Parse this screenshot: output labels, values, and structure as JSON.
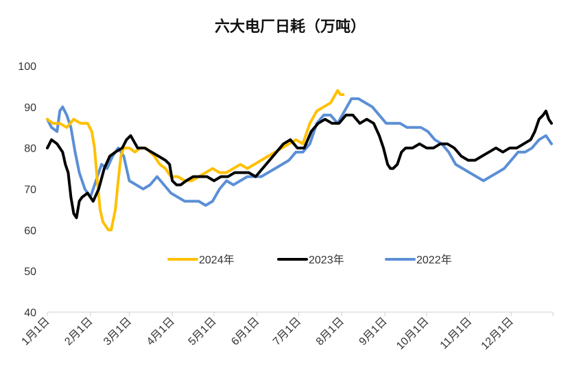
{
  "chart_data": {
    "type": "line",
    "title": "六大电厂日耗（万吨）",
    "xlabel": "",
    "ylabel": "",
    "ylim": [
      40,
      100
    ],
    "yticks": [
      40,
      50,
      60,
      70,
      80,
      90,
      100
    ],
    "x_range": [
      1,
      365
    ],
    "grid": false,
    "legend_position": "center",
    "categories": [
      "1月1日",
      "2月1日",
      "3月1日",
      "4月1日",
      "5月1日",
      "6月1日",
      "7月1日",
      "8月1日",
      "9月1日",
      "10月1日",
      "11月1日",
      "12月1日"
    ],
    "category_days": [
      1,
      32,
      60,
      91,
      121,
      152,
      182,
      213,
      244,
      274,
      305,
      335
    ],
    "series": [
      {
        "name": "2024年",
        "color": "#FFC000",
        "x": [
          1,
          5,
          10,
          15,
          20,
          25,
          30,
          33,
          35,
          37,
          39,
          41,
          43,
          45,
          47,
          50,
          52,
          54,
          56,
          60,
          64,
          68,
          72,
          75,
          78,
          82,
          86,
          90,
          95,
          100,
          105,
          110,
          115,
          120,
          125,
          130,
          135,
          140,
          145,
          150,
          155,
          160,
          165,
          170,
          175,
          180,
          185,
          190,
          195,
          200,
          205,
          210,
          212,
          214
        ],
        "values": [
          87,
          86,
          86,
          85,
          87,
          86,
          86,
          84,
          80,
          72,
          65,
          62,
          61,
          60,
          60,
          65,
          72,
          78,
          80,
          80,
          79,
          80,
          80,
          79,
          78,
          76,
          75,
          73,
          73,
          72,
          72,
          73,
          74,
          75,
          74,
          74,
          75,
          76,
          75,
          76,
          77,
          78,
          79,
          80,
          81,
          82,
          81,
          86,
          89,
          90,
          91,
          94,
          93,
          93
        ]
      },
      {
        "name": "2023年",
        "color": "#000000",
        "x": [
          1,
          4,
          8,
          12,
          14,
          16,
          18,
          20,
          22,
          24,
          26,
          30,
          34,
          38,
          42,
          46,
          50,
          55,
          58,
          61,
          66,
          71,
          76,
          81,
          86,
          89,
          91,
          94,
          97,
          101,
          106,
          111,
          116,
          121,
          126,
          131,
          136,
          141,
          146,
          151,
          156,
          161,
          166,
          171,
          176,
          181,
          186,
          191,
          196,
          201,
          206,
          211,
          216,
          221,
          226,
          231,
          236,
          240,
          243,
          246,
          248,
          250,
          253,
          256,
          259,
          264,
          269,
          274,
          279,
          284,
          289,
          294,
          299,
          304,
          309,
          314,
          319,
          324,
          329,
          334,
          339,
          344,
          349,
          352,
          355,
          358,
          360,
          362,
          364
        ],
        "values": [
          80,
          82,
          81,
          79,
          76,
          74,
          68,
          64,
          63,
          67,
          68,
          69,
          67,
          70,
          75,
          78,
          79,
          80,
          82,
          83,
          80,
          80,
          79,
          78,
          77,
          76,
          72,
          71,
          71,
          72,
          73,
          73,
          73,
          72,
          73,
          73,
          74,
          74,
          74,
          73,
          75,
          77,
          79,
          81,
          82,
          80,
          80,
          84,
          86,
          87,
          86,
          86,
          88,
          88,
          86,
          87,
          86,
          83,
          80,
          76,
          75,
          75,
          76,
          79,
          80,
          80,
          81,
          80,
          80,
          81,
          81,
          80,
          78,
          77,
          77,
          78,
          79,
          80,
          79,
          80,
          80,
          81,
          82,
          84,
          87,
          88,
          89,
          87,
          86
        ]
      },
      {
        "name": "2022年",
        "color": "#5B8FD6",
        "x": [
          1,
          4,
          8,
          10,
          12,
          15,
          18,
          21,
          24,
          28,
          32,
          36,
          40,
          44,
          48,
          52,
          56,
          60,
          65,
          70,
          75,
          80,
          85,
          90,
          95,
          100,
          105,
          110,
          115,
          120,
          125,
          130,
          135,
          140,
          145,
          150,
          155,
          160,
          165,
          170,
          175,
          180,
          185,
          190,
          195,
          200,
          205,
          210,
          215,
          220,
          225,
          230,
          235,
          240,
          245,
          250,
          255,
          260,
          265,
          270,
          275,
          280,
          285,
          290,
          295,
          300,
          305,
          310,
          315,
          320,
          325,
          330,
          335,
          340,
          345,
          350,
          355,
          360,
          362,
          364
        ],
        "values": [
          87,
          85,
          84,
          89,
          90,
          88,
          85,
          79,
          74,
          70,
          68,
          72,
          76,
          75,
          78,
          80,
          78,
          72,
          71,
          70,
          71,
          73,
          71,
          69,
          68,
          67,
          67,
          67,
          66,
          67,
          70,
          72,
          71,
          72,
          73,
          73,
          73,
          74,
          75,
          76,
          77,
          79,
          79,
          81,
          86,
          88,
          88,
          86,
          89,
          92,
          92,
          91,
          90,
          88,
          86,
          86,
          86,
          85,
          85,
          85,
          84,
          82,
          81,
          79,
          76,
          75,
          74,
          73,
          72,
          73,
          74,
          75,
          77,
          79,
          79,
          80,
          82,
          83,
          82,
          81
        ]
      }
    ]
  }
}
